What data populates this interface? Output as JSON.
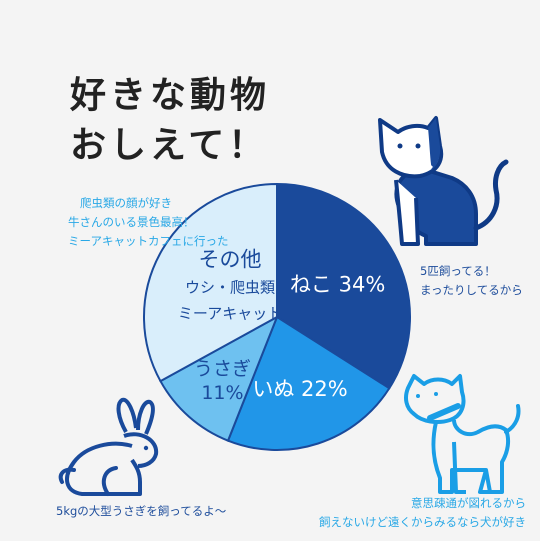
{
  "title": [
    "好きな動物",
    "おしえて！"
  ],
  "colors": {
    "cat": "#1a4a9b",
    "dog": "#2196e8",
    "rabbit": "#6ec1f0",
    "other": "#d9eefb",
    "outline_dark": "#0f3a86",
    "outline_light": "#1a9ee6"
  },
  "chart_data": {
    "type": "pie",
    "slices": [
      {
        "label": "ねこ",
        "value": 34,
        "display": "34%"
      },
      {
        "label": "いぬ",
        "value": 22,
        "display": "22%"
      },
      {
        "label": "うさぎ",
        "value": 11,
        "display": "11%"
      },
      {
        "label": "その他",
        "value": 33,
        "sublabels": [
          "ウシ・爬虫類",
          "ミーアキャット"
        ]
      }
    ]
  },
  "notes": {
    "other": [
      "爬虫類の顔が好き",
      "牛さんのいる景色最高！",
      "ミーアキャットカフェに行った"
    ],
    "cat": [
      "5匹飼ってる！",
      "まったりしてるから"
    ],
    "dog": [
      "意思疎通が図れるから",
      "飼えないけど遠くからみるなら犬が好き"
    ],
    "rabbit": [
      "5kgの大型うさぎを飼ってるよ〜"
    ]
  },
  "icons": {
    "cat": "cat-icon",
    "dog": "dog-icon",
    "rabbit": "rabbit-icon"
  }
}
